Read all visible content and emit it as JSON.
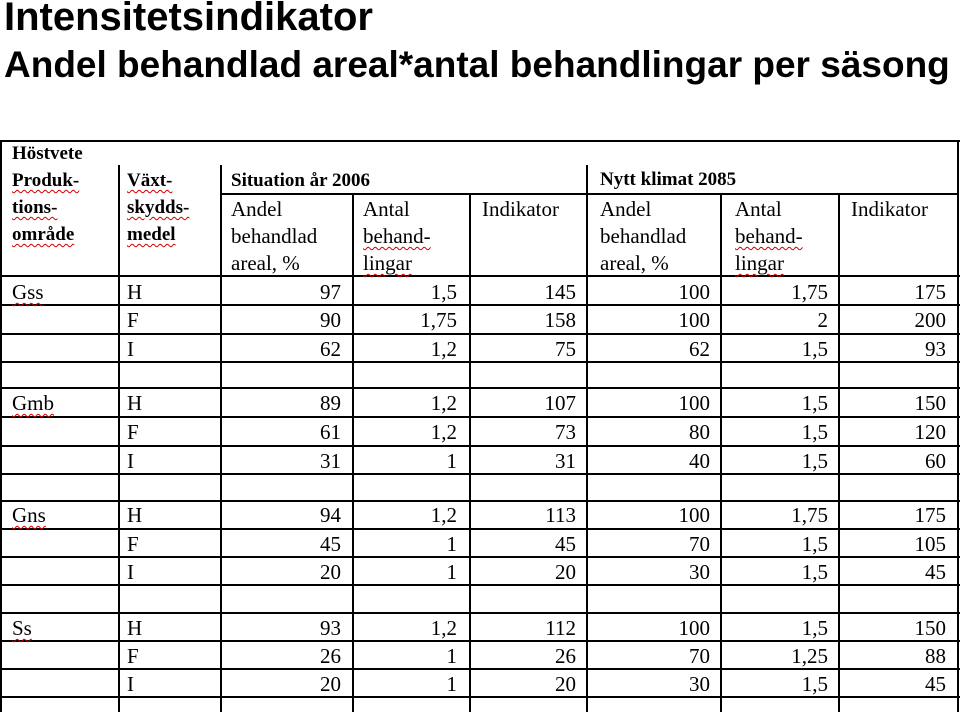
{
  "title": "Intensitetsindikator",
  "subtitle": "Andel behandlad areal*antal behandlingar per säsong",
  "table": {
    "crop": "Höstvete",
    "col1_header": [
      "Produk-",
      "tions-",
      "område"
    ],
    "col2_header": [
      "Växt-",
      "skydds-",
      "medel"
    ],
    "group1": "Situation år 2006",
    "group2": "Nytt klimat 2085",
    "sub_andel": [
      "Andel",
      "behandlad",
      "areal, %"
    ],
    "sub_antal": [
      "Antal",
      "behand-",
      "lingar"
    ],
    "sub_indikator": "Indikator",
    "sections": [
      {
        "area": "Gss",
        "rows": [
          {
            "medel": "H",
            "a1": "97",
            "b1": "1,5",
            "i1": "145",
            "a2": "100",
            "b2": "1,75",
            "i2": "175"
          },
          {
            "medel": "F",
            "a1": "90",
            "b1": "1,75",
            "i1": "158",
            "a2": "100",
            "b2": "2",
            "i2": "200"
          },
          {
            "medel": "I",
            "a1": "62",
            "b1": "1,2",
            "i1": "75",
            "a2": "62",
            "b2": "1,5",
            "i2": "93"
          }
        ]
      },
      {
        "area": "Gmb",
        "rows": [
          {
            "medel": "H",
            "a1": "89",
            "b1": "1,2",
            "i1": "107",
            "a2": "100",
            "b2": "1,5",
            "i2": "150"
          },
          {
            "medel": "F",
            "a1": "61",
            "b1": "1,2",
            "i1": "73",
            "a2": "80",
            "b2": "1,5",
            "i2": "120"
          },
          {
            "medel": "I",
            "a1": "31",
            "b1": "1",
            "i1": "31",
            "a2": "40",
            "b2": "1,5",
            "i2": "60"
          }
        ]
      },
      {
        "area": "Gns",
        "rows": [
          {
            "medel": "H",
            "a1": "94",
            "b1": "1,2",
            "i1": "113",
            "a2": "100",
            "b2": "1,75",
            "i2": "175"
          },
          {
            "medel": "F",
            "a1": "45",
            "b1": "1",
            "i1": "45",
            "a2": "70",
            "b2": "1,5",
            "i2": "105"
          },
          {
            "medel": "I",
            "a1": "20",
            "b1": "1",
            "i1": "20",
            "a2": "30",
            "b2": "1,5",
            "i2": "45"
          }
        ]
      },
      {
        "area": "Ss",
        "rows": [
          {
            "medel": "H",
            "a1": "93",
            "b1": "1,2",
            "i1": "112",
            "a2": "100",
            "b2": "1,5",
            "i2": "150"
          },
          {
            "medel": "F",
            "a1": "26",
            "b1": "1",
            "i1": "26",
            "a2": "70",
            "b2": "1,25",
            "i2": "88"
          },
          {
            "medel": "I",
            "a1": "20",
            "b1": "1",
            "i1": "20",
            "a2": "30",
            "b2": "1,5",
            "i2": "45"
          }
        ]
      }
    ]
  }
}
